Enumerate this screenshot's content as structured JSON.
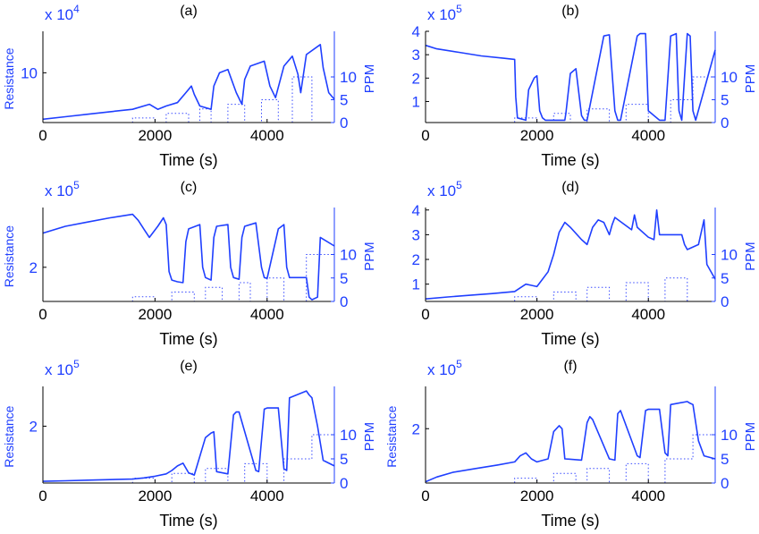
{
  "colors": {
    "trace": "#1f3fff",
    "axes": "#000000",
    "ppm": "#3a4cff"
  },
  "chart_data": [
    {
      "type": "line",
      "panel": "(a)",
      "xlabel": "Time (s)",
      "ylabel": "Resistance",
      "y2label": "PPM",
      "multiplier": "x 10",
      "exponent": "4",
      "xlim": [
        0,
        5200
      ],
      "ylim": [
        70000,
        125000
      ],
      "y2lim": [
        0,
        20
      ],
      "xticks": [
        0,
        2000,
        4000
      ],
      "yticks": [
        100000
      ],
      "yticklabels": [
        "10"
      ],
      "y2ticks": [
        0,
        5,
        10
      ],
      "series": [
        {
          "x": [
            0,
            400,
            800,
            1200,
            1600,
            1900,
            2050,
            2200,
            2400,
            2550,
            2650,
            2700,
            2800,
            3000,
            3050,
            3150,
            3300,
            3450,
            3550,
            3600,
            3700,
            3950,
            4050,
            4150,
            4300,
            4450,
            4550,
            4600,
            4700,
            4950,
            5000,
            5100,
            5200
          ],
          "y": [
            72000,
            73500,
            75000,
            76500,
            78000,
            81000,
            78000,
            80000,
            82000,
            88000,
            92000,
            87000,
            80000,
            78000,
            92000,
            100000,
            102000,
            88000,
            81000,
            96000,
            104000,
            107000,
            92000,
            85000,
            104000,
            110000,
            99000,
            88000,
            111000,
            117000,
            103000,
            88000,
            84000
          ]
        }
      ],
      "ppm": {
        "x": [
          0,
          1600,
          1600,
          2000,
          2000,
          2200,
          2200,
          2600,
          2600,
          2800,
          2800,
          3000,
          3000,
          3300,
          3300,
          3600,
          3600,
          3900,
          3900,
          4200,
          4200,
          4450,
          4450,
          4800,
          4800,
          5200
        ],
        "y": [
          0,
          0,
          1,
          1,
          0,
          0,
          2,
          2,
          0,
          0,
          3,
          3,
          0,
          0,
          4,
          4,
          0,
          0,
          5,
          5,
          0,
          0,
          10,
          10,
          0,
          0
        ]
      }
    },
    {
      "type": "line",
      "panel": "(b)",
      "xlabel": "Time (s)",
      "ylabel": "",
      "y2label": "PPM",
      "multiplier": "x 10",
      "exponent": "5",
      "xlim": [
        0,
        5200
      ],
      "ylim": [
        10000,
        400000
      ],
      "y2lim": [
        0,
        20
      ],
      "xticks": [
        0,
        2000,
        4000
      ],
      "yticks": [
        100000,
        200000,
        300000,
        400000
      ],
      "yticklabels": [
        "1",
        "2",
        "3",
        "4"
      ],
      "y2ticks": [
        0,
        5,
        10
      ],
      "series": [
        {
          "x": [
            0,
            200,
            600,
            1000,
            1400,
            1600,
            1620,
            1650,
            1800,
            1850,
            1950,
            2000,
            2050,
            2100,
            2150,
            2200,
            2500,
            2520,
            2600,
            2700,
            2800,
            2850,
            2900,
            3200,
            3300,
            3400,
            3450,
            3500,
            3800,
            3850,
            3950,
            4000,
            4200,
            4300,
            4400,
            4500,
            4550,
            4600,
            4700,
            4750,
            4800,
            4850,
            5200
          ],
          "y": [
            340000,
            325000,
            310000,
            295000,
            285000,
            280000,
            120000,
            30000,
            20000,
            150000,
            200000,
            210000,
            60000,
            30000,
            20000,
            20000,
            20000,
            50000,
            220000,
            240000,
            40000,
            20000,
            20000,
            380000,
            385000,
            60000,
            20000,
            20000,
            380000,
            390000,
            390000,
            60000,
            20000,
            20000,
            380000,
            390000,
            60000,
            20000,
            390000,
            380000,
            60000,
            20000,
            320000
          ]
        }
      ],
      "ppm": {
        "x": [
          0,
          1600,
          1600,
          2000,
          2000,
          2300,
          2300,
          2600,
          2600,
          2900,
          2900,
          3300,
          3300,
          3600,
          3600,
          4000,
          4000,
          4400,
          4400,
          4800,
          4800,
          5200
        ],
        "y": [
          0,
          0,
          1,
          1,
          0,
          0,
          2,
          2,
          0,
          0,
          3,
          3,
          0,
          0,
          4,
          4,
          0,
          0,
          5,
          5,
          10,
          10
        ]
      }
    },
    {
      "type": "line",
      "panel": "(c)",
      "xlabel": "Time (s)",
      "ylabel": "Resistance",
      "y2label": "PPM",
      "multiplier": "x 10",
      "exponent": "5",
      "xlim": [
        0,
        5200
      ],
      "ylim": [
        160000,
        270000
      ],
      "y2lim": [
        0,
        20
      ],
      "xticks": [
        0,
        2000,
        4000
      ],
      "yticks": [
        200000
      ],
      "yticklabels": [
        "2"
      ],
      "y2ticks": [
        0,
        5,
        10
      ],
      "series": [
        {
          "x": [
            0,
            400,
            800,
            1200,
            1600,
            1700,
            1800,
            1900,
            2050,
            2150,
            2200,
            2250,
            2300,
            2400,
            2500,
            2550,
            2600,
            2800,
            2850,
            2900,
            3000,
            3050,
            3100,
            3300,
            3350,
            3400,
            3500,
            3550,
            3600,
            3800,
            3900,
            3950,
            4000,
            4200,
            4300,
            4350,
            4400,
            4700,
            4750,
            4800,
            4900,
            4950,
            5200
          ],
          "y": [
            240000,
            248000,
            253000,
            258000,
            262000,
            255000,
            245000,
            235000,
            248000,
            258000,
            250000,
            195000,
            185000,
            183000,
            182000,
            230000,
            245000,
            250000,
            200000,
            188000,
            185000,
            235000,
            248000,
            250000,
            200000,
            188000,
            186000,
            235000,
            248000,
            252000,
            200000,
            188000,
            187000,
            245000,
            250000,
            200000,
            188000,
            188000,
            165000,
            162000,
            165000,
            235000,
            225000
          ]
        }
      ],
      "ppm": {
        "x": [
          0,
          1600,
          1600,
          2000,
          2000,
          2300,
          2300,
          2700,
          2700,
          2900,
          2900,
          3200,
          3200,
          3500,
          3500,
          3700,
          3700,
          4000,
          4000,
          4300,
          4300,
          4700,
          4700,
          5200
        ],
        "y": [
          0,
          0,
          1,
          1,
          0,
          0,
          2,
          2,
          0,
          0,
          3,
          3,
          0,
          0,
          4,
          4,
          0,
          0,
          5,
          5,
          0,
          0,
          10,
          10
        ]
      }
    },
    {
      "type": "line",
      "panel": "(d)",
      "xlabel": "Time (s)",
      "ylabel": "",
      "y2label": "PPM",
      "multiplier": "x 10",
      "exponent": "5",
      "xlim": [
        0,
        5200
      ],
      "ylim": [
        30000,
        410000
      ],
      "y2lim": [
        0,
        20
      ],
      "xticks": [
        0,
        2000,
        4000
      ],
      "yticks": [
        100000,
        200000,
        300000,
        400000
      ],
      "yticklabels": [
        "1",
        "2",
        "3",
        "4"
      ],
      "y2ticks": [
        0,
        5,
        10
      ],
      "series": [
        {
          "x": [
            0,
            400,
            800,
            1200,
            1600,
            1700,
            1800,
            1900,
            2000,
            2200,
            2300,
            2400,
            2500,
            2600,
            2800,
            2900,
            3000,
            3100,
            3200,
            3300,
            3350,
            3400,
            3700,
            3750,
            3800,
            4000,
            4100,
            4150,
            4200,
            4600,
            4650,
            4700,
            4900,
            5000,
            5050,
            5200
          ],
          "y": [
            40000,
            48000,
            55000,
            62000,
            70000,
            85000,
            100000,
            95000,
            90000,
            150000,
            220000,
            310000,
            350000,
            330000,
            280000,
            260000,
            330000,
            360000,
            350000,
            300000,
            340000,
            370000,
            320000,
            380000,
            330000,
            290000,
            280000,
            400000,
            300000,
            300000,
            260000,
            240000,
            260000,
            360000,
            180000,
            120000
          ]
        }
      ],
      "ppm": {
        "x": [
          0,
          1600,
          1600,
          2000,
          2000,
          2300,
          2300,
          2700,
          2700,
          2900,
          2900,
          3300,
          3300,
          3600,
          3600,
          4000,
          4000,
          4300,
          4300,
          4700,
          4700,
          5200
        ],
        "y": [
          0,
          0,
          1,
          1,
          0,
          0,
          2,
          2,
          0,
          0,
          3,
          3,
          0,
          0,
          4,
          4,
          0,
          0,
          5,
          5,
          0,
          0
        ]
      }
    },
    {
      "type": "line",
      "panel": "(e)",
      "xlabel": "Time (s)",
      "ylabel": "Resistance",
      "y2label": "PPM",
      "multiplier": "x 10",
      "exponent": "5",
      "xlim": [
        0,
        5200
      ],
      "ylim": [
        100000,
        270000
      ],
      "y2lim": [
        0,
        20
      ],
      "xticks": [
        0,
        2000,
        4000
      ],
      "yticks": [
        200000
      ],
      "yticklabels": [
        "2"
      ],
      "y2ticks": [
        0,
        5,
        10
      ],
      "series": [
        {
          "x": [
            0,
            400,
            800,
            1200,
            1600,
            1800,
            2000,
            2200,
            2300,
            2400,
            2500,
            2600,
            2700,
            2900,
            3000,
            3050,
            3100,
            3300,
            3400,
            3450,
            3500,
            3800,
            3850,
            3950,
            4000,
            4200,
            4300,
            4350,
            4400,
            4700,
            4750,
            4800,
            4900,
            5000,
            5200
          ],
          "y": [
            103000,
            104000,
            105000,
            106000,
            107000,
            109000,
            112000,
            116000,
            122000,
            130000,
            135000,
            118000,
            114000,
            180000,
            188000,
            190000,
            120000,
            116000,
            220000,
            225000,
            225000,
            122000,
            120000,
            230000,
            232000,
            232000,
            125000,
            122000,
            250000,
            262000,
            255000,
            250000,
            200000,
            140000,
            130000
          ]
        }
      ],
      "ppm": {
        "x": [
          0,
          1600,
          1600,
          2000,
          2000,
          2300,
          2300,
          2700,
          2700,
          2900,
          2900,
          3300,
          3300,
          3600,
          3600,
          4000,
          4000,
          4300,
          4300,
          4800,
          4800,
          5200
        ],
        "y": [
          0,
          0,
          1,
          1,
          0,
          0,
          2,
          2,
          0,
          0,
          3,
          3,
          0,
          0,
          4,
          4,
          0,
          0,
          5,
          5,
          10,
          10
        ]
      }
    },
    {
      "type": "line",
      "panel": "(f)",
      "xlabel": "Time (s)",
      "ylabel": "Resistance",
      "y2label": "PPM",
      "multiplier": "x 10",
      "exponent": "5",
      "xlim": [
        0,
        5200
      ],
      "ylim": [
        110000,
        270000
      ],
      "y2lim": [
        0,
        20
      ],
      "xticks": [
        0,
        2000,
        4000
      ],
      "yticks": [
        200000
      ],
      "yticklabels": [
        "2"
      ],
      "y2ticks": [
        0,
        5,
        10
      ],
      "series": [
        {
          "x": [
            0,
            200,
            500,
            900,
            1300,
            1600,
            1700,
            1800,
            1900,
            2000,
            2200,
            2300,
            2400,
            2450,
            2500,
            2800,
            2900,
            2950,
            3000,
            3300,
            3400,
            3450,
            3500,
            3800,
            3850,
            3950,
            4000,
            4200,
            4300,
            4350,
            4400,
            4700,
            4750,
            4800,
            4900,
            5000,
            5200
          ],
          "y": [
            112000,
            120000,
            128000,
            134000,
            140000,
            145000,
            155000,
            160000,
            150000,
            145000,
            150000,
            195000,
            205000,
            200000,
            150000,
            148000,
            210000,
            220000,
            215000,
            150000,
            148000,
            225000,
            230000,
            155000,
            152000,
            230000,
            232000,
            232000,
            160000,
            155000,
            240000,
            245000,
            242000,
            240000,
            180000,
            155000,
            150000
          ]
        }
      ],
      "ppm": {
        "x": [
          0,
          1600,
          1600,
          2000,
          2000,
          2300,
          2300,
          2700,
          2700,
          2900,
          2900,
          3300,
          3300,
          3600,
          3600,
          4000,
          4000,
          4300,
          4300,
          4800,
          4800,
          5200
        ],
        "y": [
          0,
          0,
          1,
          1,
          0,
          0,
          2,
          2,
          0,
          0,
          3,
          3,
          0,
          0,
          4,
          4,
          0,
          0,
          5,
          5,
          10,
          10
        ]
      }
    }
  ]
}
